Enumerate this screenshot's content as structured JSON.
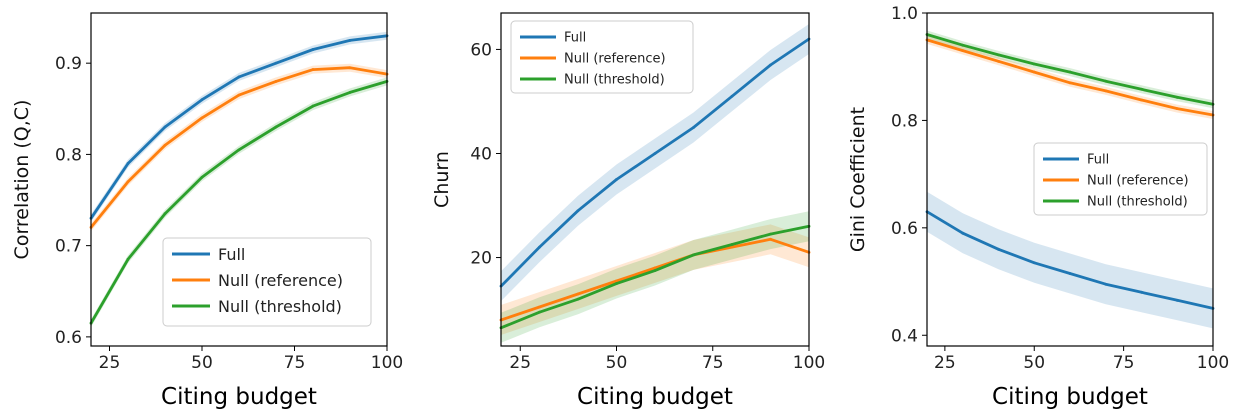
{
  "chart_data": [
    {
      "type": "line",
      "xlabel": "Citing budget",
      "ylabel": "Correlation (Q,C)",
      "xlim": [
        20,
        100
      ],
      "ylim": [
        0.59,
        0.955
      ],
      "xticks": [
        "25",
        "50",
        "75",
        "100"
      ],
      "yticks": [
        "0.6",
        "0.7",
        "0.8",
        "0.9"
      ],
      "legend_position": "lower right",
      "x": [
        20,
        30,
        40,
        50,
        60,
        70,
        80,
        90,
        100
      ],
      "series": [
        {
          "name": "Full",
          "color": "#1f77b4",
          "values": [
            0.73,
            0.79,
            0.83,
            0.86,
            0.885,
            0.9,
            0.915,
            0.925,
            0.93
          ]
        },
        {
          "name": "Null (reference)",
          "color": "#ff7f0e",
          "values": [
            0.72,
            0.77,
            0.81,
            0.84,
            0.865,
            0.88,
            0.893,
            0.895,
            0.888
          ]
        },
        {
          "name": "Null (threshold)",
          "color": "#2ca02c",
          "values": [
            0.615,
            0.685,
            0.735,
            0.775,
            0.805,
            0.83,
            0.853,
            0.868,
            0.88
          ]
        }
      ]
    },
    {
      "type": "line",
      "xlabel": "Citing budget",
      "ylabel": "Churn",
      "xlim": [
        20,
        100
      ],
      "ylim": [
        3,
        67
      ],
      "xticks": [
        "25",
        "50",
        "75",
        "100"
      ],
      "yticks": [
        "20",
        "40",
        "60"
      ],
      "legend_position": "upper left",
      "x": [
        20,
        30,
        40,
        50,
        60,
        70,
        80,
        90,
        100
      ],
      "series": [
        {
          "name": "Full",
          "color": "#1f77b4",
          "values": [
            14.5,
            22,
            29,
            35,
            40,
            45,
            51,
            57,
            62
          ]
        },
        {
          "name": "Null (reference)",
          "color": "#ff7f0e",
          "values": [
            8,
            10.5,
            13,
            15.5,
            18,
            20.5,
            22,
            23.5,
            21
          ]
        },
        {
          "name": "Null (threshold)",
          "color": "#2ca02c",
          "values": [
            6.5,
            9.5,
            12,
            15,
            17.5,
            20.5,
            22.5,
            24.5,
            26
          ]
        }
      ]
    },
    {
      "type": "line",
      "xlabel": "Citing budget",
      "ylabel": "Gini Coefficient",
      "xlim": [
        20,
        100
      ],
      "ylim": [
        0.38,
        1.0
      ],
      "xticks": [
        "25",
        "50",
        "75",
        "100"
      ],
      "yticks": [
        "0.4",
        "0.6",
        "0.8",
        "1.0"
      ],
      "legend_position": "center right",
      "x": [
        20,
        30,
        40,
        50,
        60,
        70,
        80,
        90,
        100
      ],
      "series": [
        {
          "name": "Full",
          "color": "#1f77b4",
          "values": [
            0.63,
            0.59,
            0.56,
            0.535,
            0.515,
            0.495,
            0.48,
            0.465,
            0.45
          ]
        },
        {
          "name": "Null (reference)",
          "color": "#ff7f0e",
          "values": [
            0.95,
            0.93,
            0.91,
            0.89,
            0.87,
            0.855,
            0.838,
            0.822,
            0.81
          ]
        },
        {
          "name": "Null (threshold)",
          "color": "#2ca02c",
          "values": [
            0.96,
            0.94,
            0.922,
            0.905,
            0.89,
            0.873,
            0.858,
            0.843,
            0.83
          ]
        }
      ]
    }
  ]
}
